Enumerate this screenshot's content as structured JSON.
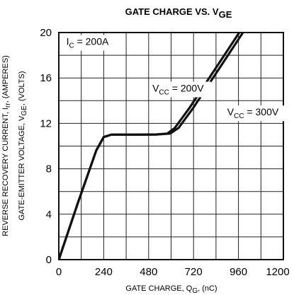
{
  "chart_data": {
    "type": "line",
    "title": {
      "main": "GATE CHARGE VS. V",
      "sub": "GE"
    },
    "xlabel": {
      "main": "GATE CHARGE, Q",
      "sub": "G",
      "rest": ", (nC)"
    },
    "ylabel": {
      "line1": {
        "main": "REVERSE RECOVERY CURRENT, I",
        "sub": "rr",
        "rest": ", (AMPERES)"
      },
      "line2": {
        "main": "GATE-EMITTER VOLTAGE, V",
        "sub": "GE",
        "rest": ", (VOLTS)"
      }
    },
    "xlim": [
      0,
      1200
    ],
    "ylim": [
      0,
      20
    ],
    "xticks": [
      "0",
      "240",
      "480",
      "720",
      "960",
      "1200"
    ],
    "yticks": [
      "0",
      "4",
      "8",
      "12",
      "16",
      "20"
    ],
    "xminor_step": 120,
    "yminor_step": 2,
    "grid": true,
    "annotations": [
      {
        "main": "I",
        "sub": "C",
        "rest": " = 200A",
        "x": 40,
        "y": 18.9
      },
      {
        "main": "V",
        "sub": "CC",
        "rest": " = 200V",
        "x": 500,
        "y": 14.8
      },
      {
        "main": "V",
        "sub": "CC",
        "rest": " = 300V",
        "x": 900,
        "y": 12.7
      }
    ],
    "series": [
      {
        "name": "V_CC = 200V",
        "x": [
          0,
          100,
          200,
          240,
          280,
          400,
          520,
          580,
          620,
          700,
          800,
          900,
          1000,
          1060
        ],
        "y": [
          0,
          4.9,
          9.6,
          10.8,
          11.0,
          11.0,
          11.02,
          11.1,
          11.6,
          13.4,
          15.9,
          18.4,
          20.9,
          22.4
        ]
      },
      {
        "name": "V_CC = 300V",
        "x": [
          0,
          100,
          200,
          240,
          280,
          400,
          520,
          595,
          640,
          720,
          820,
          920,
          1020,
          1090
        ],
        "y": [
          0,
          4.9,
          9.6,
          10.8,
          11.0,
          11.0,
          11.02,
          11.1,
          11.6,
          13.4,
          15.9,
          18.4,
          20.9,
          22.6
        ]
      }
    ]
  }
}
